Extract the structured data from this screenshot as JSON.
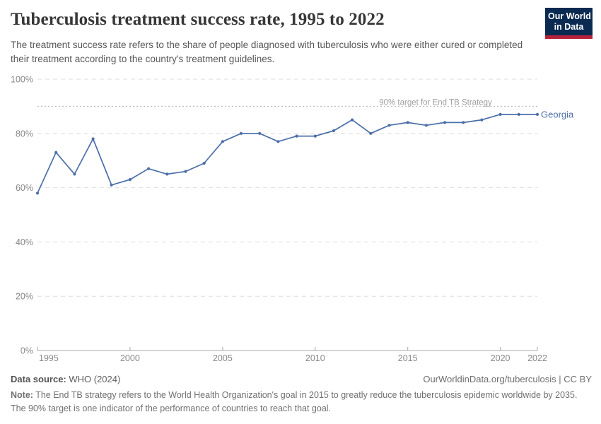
{
  "header": {
    "title": "Tuberculosis treatment success rate, 1995 to 2022",
    "subtitle": "The treatment success rate refers to the share of people diagnosed with tuberculosis who were either cured or completed their treatment according to the country's treatment guidelines."
  },
  "logo": {
    "line1": "Our World",
    "line2": "in Data",
    "bg_color": "#0b2a52",
    "accent_color": "#b6223a"
  },
  "chart_data": {
    "type": "line",
    "title": "Tuberculosis treatment success rate, 1995 to 2022",
    "x": [
      1995,
      1996,
      1997,
      1998,
      1999,
      2000,
      2001,
      2002,
      2003,
      2004,
      2005,
      2006,
      2007,
      2008,
      2009,
      2010,
      2011,
      2012,
      2013,
      2014,
      2015,
      2016,
      2017,
      2018,
      2019,
      2020,
      2021,
      2022
    ],
    "series": [
      {
        "name": "Georgia",
        "color": "#4c6ea9",
        "values": [
          58,
          73,
          65,
          78,
          61,
          63,
          67,
          65,
          66,
          69,
          77,
          80,
          80,
          77,
          79,
          79,
          81,
          85,
          80,
          83,
          84,
          83,
          84,
          84,
          85,
          87,
          87,
          87
        ]
      }
    ],
    "unit": "%",
    "ylim": [
      0,
      100
    ],
    "y_ticks": [
      0,
      20,
      40,
      60,
      80,
      100
    ],
    "x_ticks": [
      1995,
      2000,
      2005,
      2010,
      2015,
      2020,
      2022
    ],
    "grid": true,
    "legend_position": "right-of-line-end",
    "target_line": {
      "value": 90,
      "label": "90% target for End TB Strategy"
    },
    "colors": {
      "gridline": "#dedede",
      "axis": "#a8a8a8",
      "tick_label": "#888888",
      "target": "#b0b0b0",
      "target_text": "#9e9e9e"
    }
  },
  "footer": {
    "source_label": "Data source:",
    "source_value": " WHO (2024)",
    "attribution": "OurWorldinData.org/tuberculosis | CC BY",
    "note_label": "Note:",
    "note_value": " The End TB strategy refers to the World Health Organization's goal in 2015 to greatly reduce the tuberculosis epidemic worldwide by 2035. The 90% target is one indicator of the performance of countries to reach that goal."
  }
}
